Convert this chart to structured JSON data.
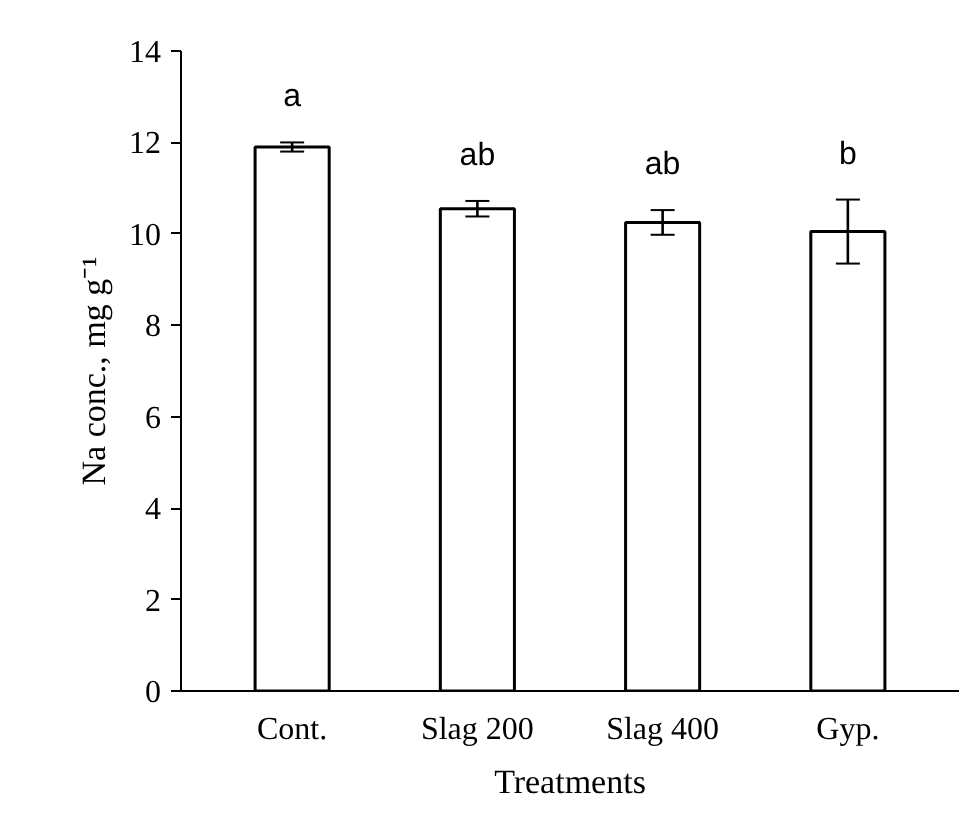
{
  "chart_data": {
    "type": "bar",
    "xlabel": "Treatments",
    "ylabel": "Na conc., mg g⁻¹",
    "categories": [
      "Cont.",
      "Slag 200",
      "Slag 400",
      "Gyp."
    ],
    "values": [
      11.9,
      10.55,
      10.25,
      10.05
    ],
    "errors": [
      0.1,
      0.17,
      0.27,
      0.7
    ],
    "color": "#ffffff",
    "ylim": [
      0,
      14
    ],
    "yticks": [
      0,
      2,
      4,
      6,
      8,
      10,
      12,
      14
    ],
    "grid": false,
    "annotations": [
      "a",
      "ab",
      "ab",
      "b"
    ]
  }
}
